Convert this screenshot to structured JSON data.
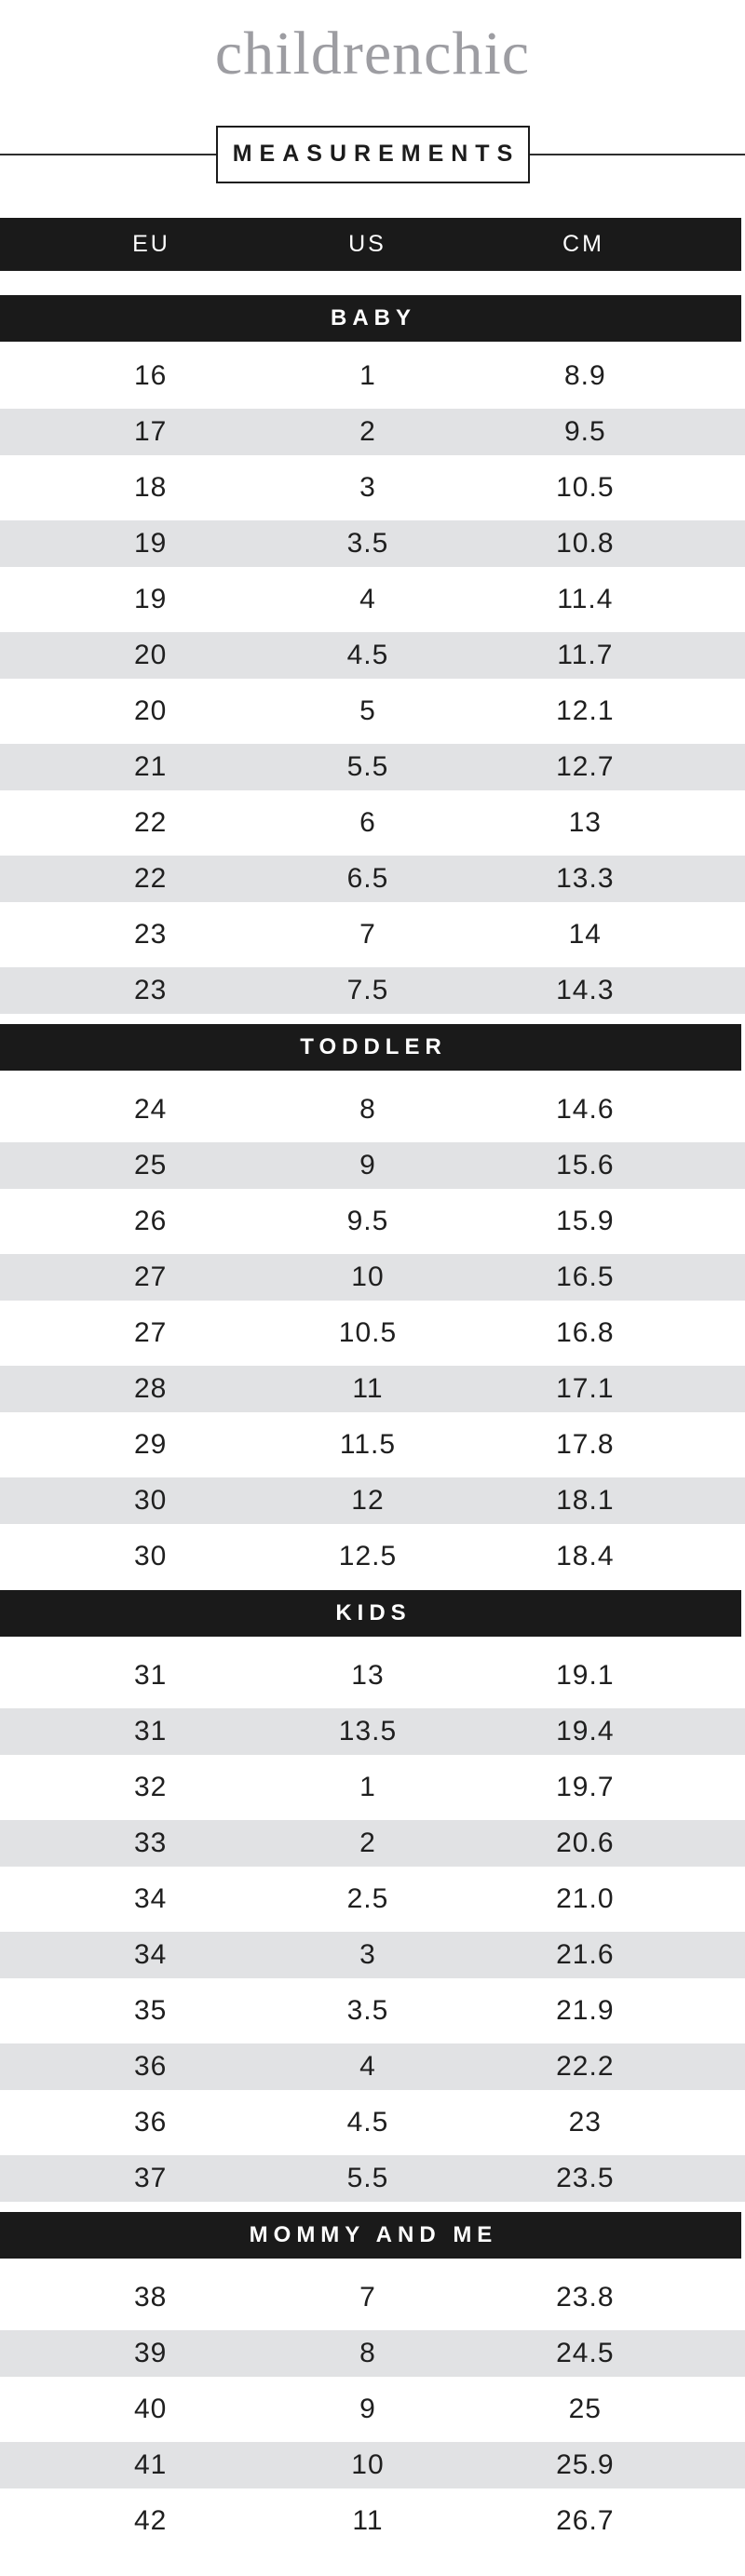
{
  "brand": {
    "logo_text": "childrenchic"
  },
  "banner": {
    "title": "MEASUREMENTS"
  },
  "table": {
    "columns": [
      "EU",
      "US",
      "CM"
    ],
    "sections": [
      {
        "label": "BABY",
        "rows": [
          [
            "16",
            "1",
            "8.9"
          ],
          [
            "17",
            "2",
            "9.5"
          ],
          [
            "18",
            "3",
            "10.5"
          ],
          [
            "19",
            "3.5",
            "10.8"
          ],
          [
            "19",
            "4",
            "11.4"
          ],
          [
            "20",
            "4.5",
            "11.7"
          ],
          [
            "20",
            "5",
            "12.1"
          ],
          [
            "21",
            "5.5",
            "12.7"
          ],
          [
            "22",
            "6",
            "13"
          ],
          [
            "22",
            "6.5",
            "13.3"
          ],
          [
            "23",
            "7",
            "14"
          ],
          [
            "23",
            "7.5",
            "14.3"
          ]
        ]
      },
      {
        "label": "TODDLER",
        "rows": [
          [
            "24",
            "8",
            "14.6"
          ],
          [
            "25",
            "9",
            "15.6"
          ],
          [
            "26",
            "9.5",
            "15.9"
          ],
          [
            "27",
            "10",
            "16.5"
          ],
          [
            "27",
            "10.5",
            "16.8"
          ],
          [
            "28",
            "11",
            "17.1"
          ],
          [
            "29",
            "11.5",
            "17.8"
          ],
          [
            "30",
            "12",
            "18.1"
          ],
          [
            "30",
            "12.5",
            "18.4"
          ]
        ]
      },
      {
        "label": "KIDS",
        "rows": [
          [
            "31",
            "13",
            "19.1"
          ],
          [
            "31",
            "13.5",
            "19.4"
          ],
          [
            "32",
            "1",
            "19.7"
          ],
          [
            "33",
            "2",
            "20.6"
          ],
          [
            "34",
            "2.5",
            "21.0"
          ],
          [
            "34",
            "3",
            "21.6"
          ],
          [
            "35",
            "3.5",
            "21.9"
          ],
          [
            "36",
            "4",
            "22.2"
          ],
          [
            "36",
            "4.5",
            "23"
          ],
          [
            "37",
            "5.5",
            "23.5"
          ]
        ]
      },
      {
        "label": "MOMMY AND ME",
        "rows": [
          [
            "38",
            "7",
            "23.8"
          ],
          [
            "39",
            "8",
            "24.5"
          ],
          [
            "40",
            "9",
            "25"
          ],
          [
            "41",
            "10",
            "25.9"
          ],
          [
            "42",
            "11",
            "26.7"
          ]
        ]
      }
    ]
  },
  "colors": {
    "bar": "#1a1a1a",
    "row_alt": "#e1e2e4",
    "logo": "#9d9da2",
    "text": "#1f1f1f"
  }
}
